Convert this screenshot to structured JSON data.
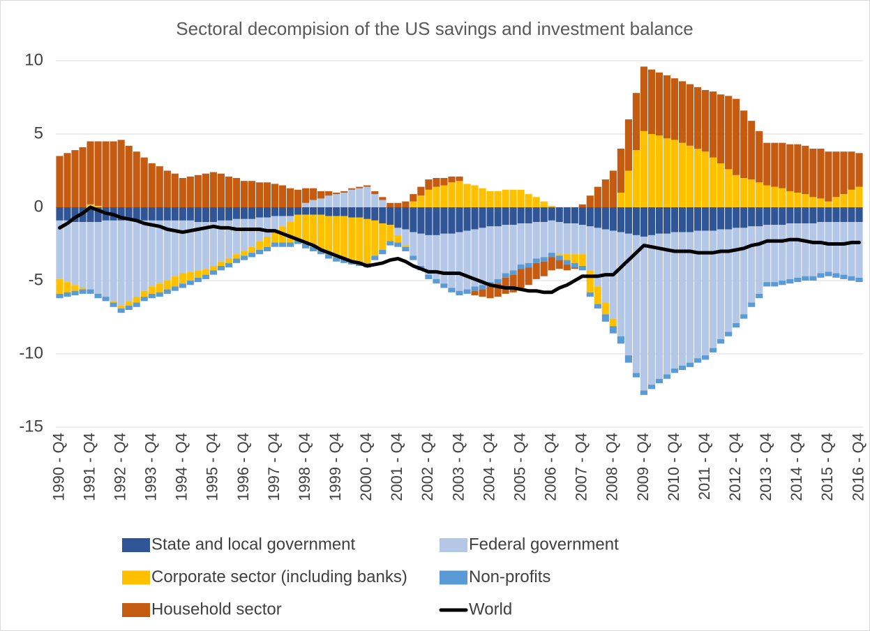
{
  "chart_data": {
    "type": "bar",
    "stacked": true,
    "title": "Sectoral decompision of the US savings and investment balance",
    "categories": [
      "1990 - Q4",
      null,
      null,
      null,
      "1991 - Q4",
      null,
      null,
      null,
      "1992 - Q4",
      null,
      null,
      null,
      "1993 - Q4",
      null,
      null,
      null,
      "1994 - Q4",
      null,
      null,
      null,
      "1995 - Q4",
      null,
      null,
      null,
      "1996 - Q4",
      null,
      null,
      null,
      "1997 - Q4",
      null,
      null,
      null,
      "1998 - Q4",
      null,
      null,
      null,
      "1999 - Q4",
      null,
      null,
      null,
      "2000 - Q4",
      null,
      null,
      null,
      "2001 - Q4",
      null,
      null,
      null,
      "2002 - Q4",
      null,
      null,
      null,
      "2003 - Q4",
      null,
      null,
      null,
      "2004 - Q4",
      null,
      null,
      null,
      "2005 - Q4",
      null,
      null,
      null,
      "2006 - Q4",
      null,
      null,
      null,
      "2007 - Q4",
      null,
      null,
      null,
      "2008 - Q4",
      null,
      null,
      null,
      "2009 - Q4",
      null,
      null,
      null,
      "2010 - Q4",
      null,
      null,
      null,
      "2011 - Q4",
      null,
      null,
      null,
      "2012 - Q4",
      null,
      null,
      null,
      "2013 - Q4",
      null,
      null,
      null,
      "2014 - Q4",
      null,
      null,
      null,
      "2015 - Q4",
      null,
      null,
      null,
      "2016 - Q4"
    ],
    "series": [
      {
        "name": "State and local government",
        "color": "#2f5597",
        "values": [
          -0.9,
          -0.9,
          -1.0,
          -1.0,
          -1.0,
          -1.0,
          -0.9,
          -0.9,
          -0.9,
          -0.9,
          -0.9,
          -0.9,
          -0.9,
          -0.9,
          -0.9,
          -0.9,
          -0.9,
          -0.9,
          -1.0,
          -1.0,
          -1.0,
          -0.9,
          -0.9,
          -0.8,
          -0.8,
          -0.8,
          -0.7,
          -0.7,
          -0.6,
          -0.6,
          -0.6,
          -0.5,
          -0.5,
          -0.5,
          -0.5,
          -0.6,
          -0.6,
          -0.6,
          -0.7,
          -0.7,
          -0.8,
          -0.9,
          -1.1,
          -1.2,
          -1.4,
          -1.5,
          -1.7,
          -1.8,
          -1.9,
          -1.9,
          -1.8,
          -1.8,
          -1.7,
          -1.6,
          -1.5,
          -1.4,
          -1.3,
          -1.3,
          -1.2,
          -1.2,
          -1.1,
          -1.1,
          -1.0,
          -1.0,
          -0.9,
          -1.0,
          -1.1,
          -1.1,
          -1.2,
          -1.3,
          -1.4,
          -1.5,
          -1.6,
          -1.7,
          -1.8,
          -1.9,
          -2.0,
          -1.9,
          -1.8,
          -1.8,
          -1.7,
          -1.7,
          -1.7,
          -1.6,
          -1.6,
          -1.6,
          -1.5,
          -1.5,
          -1.4,
          -1.4,
          -1.3,
          -1.3,
          -1.2,
          -1.2,
          -1.2,
          -1.1,
          -1.1,
          -1.1,
          -1.1,
          -1.0,
          -1.0,
          -1.0,
          -1.0,
          -1.0,
          -1.0
        ]
      },
      {
        "name": "Federal government",
        "color": "#b4c7e7",
        "values": [
          -4.0,
          -4.2,
          -4.3,
          -4.5,
          -4.6,
          -4.9,
          -5.2,
          -5.5,
          -5.8,
          -5.5,
          -5.2,
          -4.8,
          -4.5,
          -4.3,
          -4.1,
          -3.8,
          -3.6,
          -3.5,
          -3.3,
          -3.2,
          -3.0,
          -2.8,
          -2.6,
          -2.4,
          -2.2,
          -1.9,
          -1.6,
          -1.3,
          -1.0,
          -0.7,
          -0.4,
          0.0,
          0.3,
          0.5,
          0.6,
          0.8,
          0.9,
          1.0,
          1.2,
          1.3,
          1.4,
          0.9,
          0.5,
          0.0,
          -0.5,
          -1.1,
          -1.6,
          -2.2,
          -2.7,
          -3.0,
          -3.4,
          -3.7,
          -4.0,
          -4.0,
          -3.9,
          -3.9,
          -3.8,
          -3.6,
          -3.3,
          -3.1,
          -2.8,
          -2.7,
          -2.5,
          -2.4,
          -2.2,
          -2.2,
          -2.1,
          -2.1,
          -2.0,
          -3.0,
          -4.0,
          -5.0,
          -6.0,
          -7.1,
          -8.3,
          -9.4,
          -10.5,
          -10.2,
          -9.9,
          -9.6,
          -9.3,
          -9.1,
          -8.9,
          -8.7,
          -8.5,
          -8.0,
          -7.5,
          -7.0,
          -6.5,
          -5.9,
          -5.2,
          -4.6,
          -3.9,
          -3.9,
          -3.8,
          -3.8,
          -3.7,
          -3.6,
          -3.6,
          -3.5,
          -3.4,
          -3.5,
          -3.6,
          -3.7,
          -3.8
        ]
      },
      {
        "name": "Corporate sector (including banks)",
        "color": "#ffc000",
        "values": [
          -1.0,
          -0.7,
          -0.4,
          -0.1,
          0.2,
          0.1,
          0.0,
          -0.1,
          -0.2,
          -0.3,
          -0.4,
          -0.4,
          -0.5,
          -0.6,
          -0.6,
          -0.7,
          -0.7,
          -0.6,
          -0.5,
          -0.4,
          -0.3,
          -0.3,
          -0.3,
          -0.3,
          -0.3,
          -0.4,
          -0.6,
          -0.7,
          -0.8,
          -1.1,
          -1.4,
          -1.7,
          -2.0,
          -2.2,
          -2.4,
          -2.6,
          -2.8,
          -2.9,
          -2.9,
          -3.0,
          -3.0,
          -2.4,
          -1.8,
          -1.1,
          -0.5,
          -0.1,
          0.4,
          0.8,
          1.2,
          1.4,
          1.5,
          1.7,
          1.8,
          1.6,
          1.5,
          1.3,
          1.1,
          1.1,
          1.2,
          1.2,
          1.2,
          0.9,
          0.7,
          0.4,
          0.1,
          -0.1,
          -0.4,
          -0.6,
          -0.8,
          -1.5,
          -1.2,
          -0.8,
          -0.5,
          1.0,
          2.5,
          3.9,
          5.2,
          5.0,
          4.9,
          4.7,
          4.6,
          4.4,
          4.2,
          4.0,
          3.8,
          3.4,
          3.0,
          2.6,
          2.2,
          2.0,
          1.9,
          1.7,
          1.5,
          1.4,
          1.3,
          1.1,
          1.0,
          0.9,
          0.7,
          0.6,
          0.4,
          0.7,
          0.9,
          1.2,
          1.4
        ]
      },
      {
        "name": "Non-profits",
        "color": "#5b9bd5",
        "values": [
          -0.3,
          -0.3,
          -0.3,
          -0.3,
          -0.3,
          -0.3,
          -0.3,
          -0.3,
          -0.3,
          -0.3,
          -0.3,
          -0.3,
          -0.3,
          -0.3,
          -0.3,
          -0.3,
          -0.3,
          -0.3,
          -0.3,
          -0.3,
          -0.3,
          -0.3,
          -0.3,
          -0.3,
          -0.3,
          -0.3,
          -0.3,
          -0.3,
          -0.3,
          -0.3,
          -0.3,
          -0.3,
          -0.3,
          -0.3,
          -0.3,
          -0.3,
          -0.3,
          -0.3,
          -0.3,
          -0.3,
          -0.3,
          -0.3,
          -0.3,
          -0.3,
          -0.3,
          -0.3,
          -0.3,
          -0.3,
          -0.3,
          -0.3,
          -0.3,
          -0.3,
          -0.3,
          -0.3,
          -0.3,
          -0.3,
          -0.3,
          -0.3,
          -0.3,
          -0.3,
          -0.3,
          -0.3,
          -0.3,
          -0.3,
          -0.3,
          -0.3,
          -0.3,
          -0.3,
          -0.3,
          -0.3,
          -0.3,
          -0.5,
          -0.5,
          -0.5,
          -0.5,
          -0.3,
          -0.3,
          -0.3,
          -0.3,
          -0.3,
          -0.3,
          -0.3,
          -0.3,
          -0.3,
          -0.3,
          -0.3,
          -0.3,
          -0.3,
          -0.3,
          -0.3,
          -0.3,
          -0.3,
          -0.3,
          -0.3,
          -0.3,
          -0.3,
          -0.3,
          -0.3,
          -0.3,
          -0.3,
          -0.3,
          -0.3,
          -0.3,
          -0.3,
          -0.3
        ]
      },
      {
        "name": "Household sector",
        "color": "#c55a11",
        "values": [
          3.5,
          3.7,
          3.9,
          4.1,
          4.3,
          4.4,
          4.5,
          4.5,
          4.6,
          4.2,
          3.8,
          3.4,
          3.0,
          2.8,
          2.5,
          2.3,
          2.0,
          2.1,
          2.2,
          2.3,
          2.4,
          2.3,
          2.1,
          2.0,
          1.8,
          1.8,
          1.7,
          1.7,
          1.6,
          1.5,
          1.3,
          1.2,
          1.0,
          0.8,
          0.5,
          0.3,
          0.1,
          0.1,
          0.1,
          0.1,
          0.1,
          0.2,
          0.2,
          0.3,
          0.3,
          0.4,
          0.5,
          0.6,
          0.7,
          0.6,
          0.5,
          0.4,
          0.3,
          0.0,
          -0.3,
          -0.5,
          -0.8,
          -0.9,
          -1.1,
          -1.2,
          -1.3,
          -1.2,
          -1.1,
          -1.0,
          -0.9,
          -0.6,
          -0.4,
          -0.1,
          0.2,
          0.8,
          1.4,
          1.9,
          2.5,
          3.0,
          3.5,
          3.9,
          4.4,
          4.4,
          4.3,
          4.3,
          4.2,
          4.2,
          4.2,
          4.2,
          4.2,
          4.5,
          4.7,
          5.0,
          5.2,
          4.6,
          4.0,
          3.5,
          2.9,
          3.0,
          3.1,
          3.2,
          3.3,
          3.3,
          3.3,
          3.4,
          3.4,
          3.1,
          2.9,
          2.6,
          2.3
        ]
      },
      {
        "name": "World",
        "type": "line",
        "color": "#000000",
        "values": [
          -1.4,
          -1.1,
          -0.7,
          -0.4,
          0.0,
          -0.2,
          -0.4,
          -0.5,
          -0.7,
          -0.8,
          -0.9,
          -1.1,
          -1.2,
          -1.3,
          -1.5,
          -1.6,
          -1.7,
          -1.6,
          -1.5,
          -1.4,
          -1.3,
          -1.4,
          -1.4,
          -1.5,
          -1.5,
          -1.5,
          -1.5,
          -1.6,
          -1.6,
          -1.8,
          -2.0,
          -2.2,
          -2.4,
          -2.6,
          -2.9,
          -3.1,
          -3.3,
          -3.5,
          -3.7,
          -3.8,
          -4.0,
          -3.9,
          -3.8,
          -3.6,
          -3.5,
          -3.7,
          -4.0,
          -4.2,
          -4.4,
          -4.4,
          -4.5,
          -4.5,
          -4.5,
          -4.7,
          -4.9,
          -5.1,
          -5.3,
          -5.4,
          -5.5,
          -5.5,
          -5.6,
          -5.7,
          -5.7,
          -5.8,
          -5.8,
          -5.5,
          -5.3,
          -5.0,
          -4.7,
          -4.7,
          -4.7,
          -4.6,
          -4.6,
          -4.1,
          -3.6,
          -3.1,
          -2.6,
          -2.7,
          -2.8,
          -2.9,
          -3.0,
          -3.0,
          -3.0,
          -3.1,
          -3.1,
          -3.1,
          -3.0,
          -3.0,
          -2.9,
          -2.8,
          -2.6,
          -2.5,
          -2.3,
          -2.3,
          -2.3,
          -2.2,
          -2.2,
          -2.3,
          -2.4,
          -2.4,
          -2.5,
          -2.5,
          -2.5,
          -2.4,
          -2.4
        ]
      }
    ],
    "ylim": [
      -15,
      10
    ],
    "yticks": [
      -15,
      -10,
      -5,
      0,
      5,
      10
    ],
    "grid": true,
    "legend": "bottom"
  }
}
